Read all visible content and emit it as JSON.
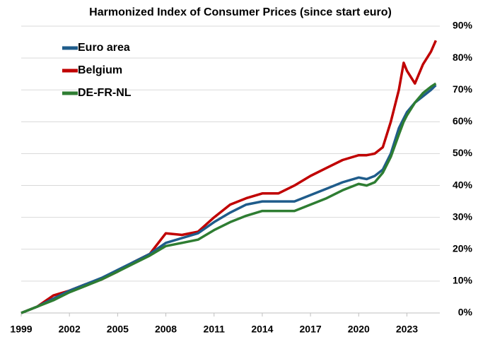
{
  "chart_data": {
    "type": "line",
    "title": "Harmonized Index of Consumer Prices (since start euro)",
    "x": [
      1999,
      2000,
      2001,
      2002,
      2003,
      2004,
      2005,
      2006,
      2007,
      2008,
      2009,
      2010,
      2011,
      2012,
      2013,
      2014,
      2015,
      2016,
      2017,
      2018,
      2019,
      2020,
      2020.5,
      2021,
      2021.5,
      2022,
      2022.5,
      2022.8,
      2023,
      2023.5,
      2024,
      2024.5,
      2024.8
    ],
    "series": [
      {
        "name": "Euro area",
        "color": "#1f5c8b",
        "values": [
          0,
          2,
          4.5,
          7,
          9,
          11,
          13.5,
          16,
          18.5,
          22,
          23.5,
          25,
          28.5,
          31.5,
          34,
          35,
          35,
          35,
          37,
          39,
          41,
          42.5,
          42,
          43,
          45,
          50,
          58,
          61,
          63,
          66,
          68,
          70,
          71.5
        ]
      },
      {
        "name": "Belgium",
        "color": "#c00000",
        "values": [
          0,
          2,
          5.5,
          7,
          9,
          10.5,
          13,
          16,
          18.5,
          25,
          24.5,
          25.5,
          30,
          34,
          36,
          37.5,
          37.5,
          40,
          43,
          45.5,
          48,
          49.5,
          49.5,
          50,
          52,
          60,
          70,
          78.5,
          76,
          72,
          78,
          82,
          85.5
        ]
      },
      {
        "name": "DE-FR-NL",
        "color": "#2e7d32",
        "values": [
          0,
          2,
          4,
          6.5,
          8.5,
          10.5,
          13,
          15.5,
          18,
          21,
          22,
          23,
          26,
          28.5,
          30.5,
          32,
          32,
          32,
          34,
          36,
          38.5,
          40.5,
          40,
          41,
          44,
          49,
          56,
          60,
          62,
          66,
          69,
          71,
          72
        ]
      }
    ],
    "xlim": [
      1999,
      2025.4
    ],
    "xticks": [
      1999,
      2002,
      2005,
      2008,
      2011,
      2014,
      2017,
      2020,
      2023
    ],
    "ylim": [
      0,
      90
    ],
    "yticks": [
      {
        "value": 0,
        "label": "0%"
      },
      {
        "value": 10,
        "label": "10%"
      },
      {
        "value": 20,
        "label": "20%"
      },
      {
        "value": 30,
        "label": "30%"
      },
      {
        "value": 40,
        "label": "40%"
      },
      {
        "value": 50,
        "label": "50%"
      },
      {
        "value": 60,
        "label": "60%"
      },
      {
        "value": 70,
        "label": "70%"
      },
      {
        "value": 80,
        "label": "80%"
      },
      {
        "value": 90,
        "label": "90%"
      }
    ],
    "grid": true,
    "legend": "upper left"
  }
}
